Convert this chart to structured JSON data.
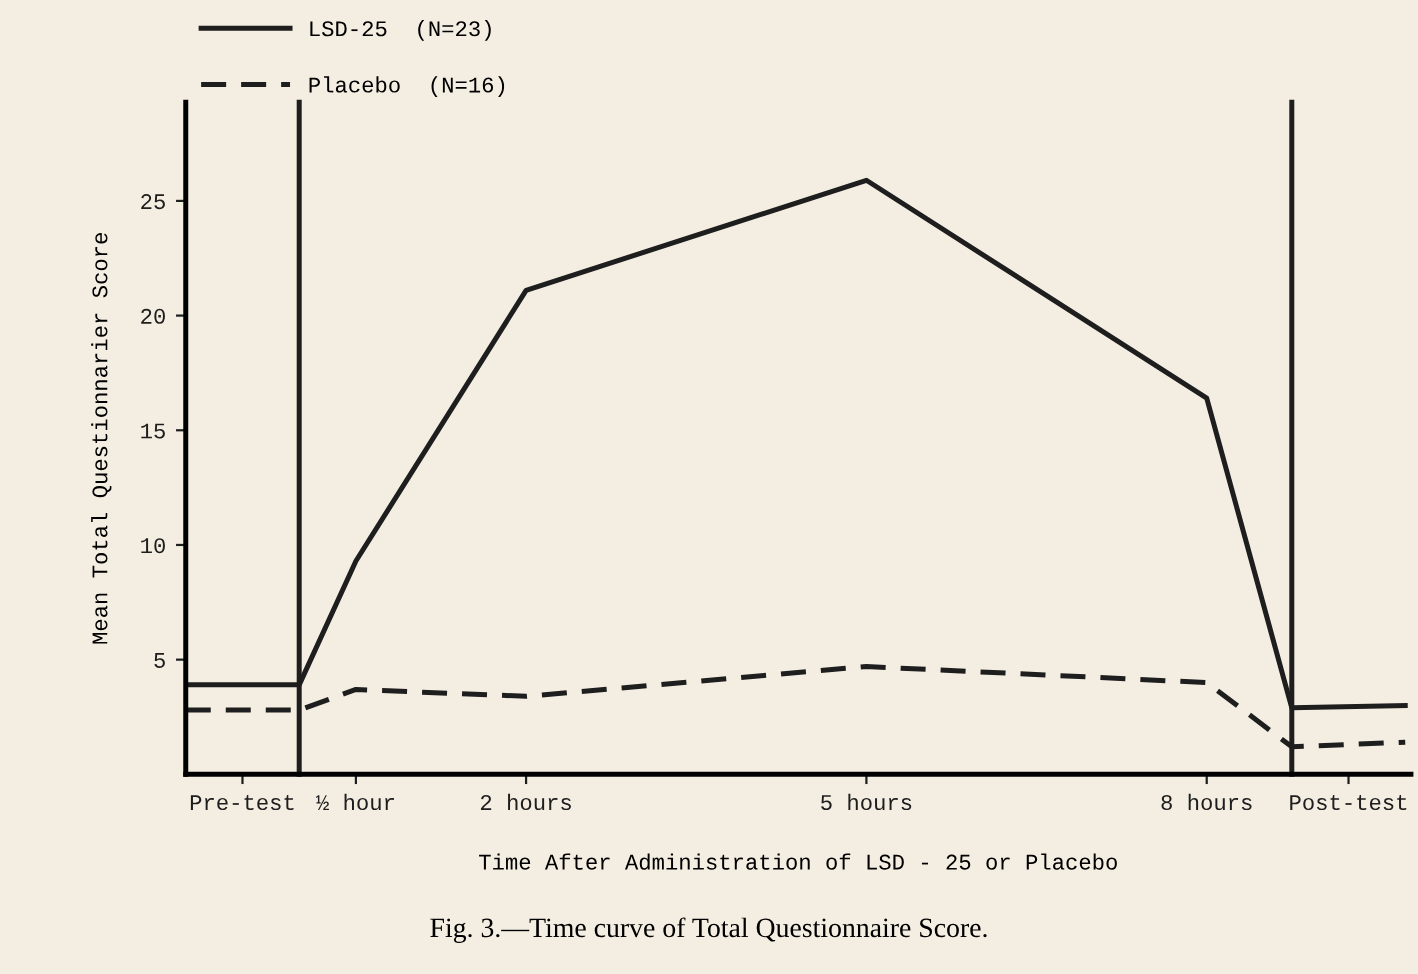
{
  "chart_data": {
    "type": "line",
    "xlabel": "Time After Administration of LSD - 25 or Placebo",
    "ylabel": "Mean Total Questionnarier Score",
    "annotations": [
      "Fig. 3.—Time curve of Total Questionnaire Score."
    ],
    "xlim": [
      -1,
      9.8
    ],
    "ylim": [
      0,
      29.3
    ],
    "xticks": [
      {
        "value": -0.5,
        "label": "Pre-test"
      },
      {
        "value": 0.5,
        "label": "½ hour"
      },
      {
        "value": 2,
        "label": "2 hours"
      },
      {
        "value": 5,
        "label": "5 hours"
      },
      {
        "value": 8,
        "label": "8 hours"
      },
      {
        "value": 9.25,
        "label": "Post-test"
      }
    ],
    "yticks": [
      5,
      10,
      15,
      20,
      25
    ],
    "ref_lines": [
      {
        "axis": "x",
        "value": 0,
        "color": "#1e1e1e"
      },
      {
        "axis": "x",
        "value": 8.75,
        "color": "#1e1e1e"
      }
    ],
    "series": [
      {
        "name": "LSD-25  (N=23)",
        "color": "#1e1e1e",
        "line_style": "solid",
        "x": [
          -1,
          0,
          0.5,
          2,
          5,
          8,
          8.75,
          9.75
        ],
        "values": [
          3.9,
          3.9,
          9.3,
          21.1,
          25.9,
          16.4,
          2.9,
          3.0
        ]
      },
      {
        "name": "Placebo  (N=16)",
        "color": "#1e1e1e",
        "line_style": "dashed",
        "x": [
          -1,
          0,
          0.5,
          2,
          5,
          8,
          8.75,
          9.75
        ],
        "values": [
          2.8,
          2.8,
          3.7,
          3.4,
          4.7,
          4.0,
          1.2,
          1.4
        ]
      }
    ],
    "legend": "top left",
    "grid": false,
    "marker": "none"
  }
}
